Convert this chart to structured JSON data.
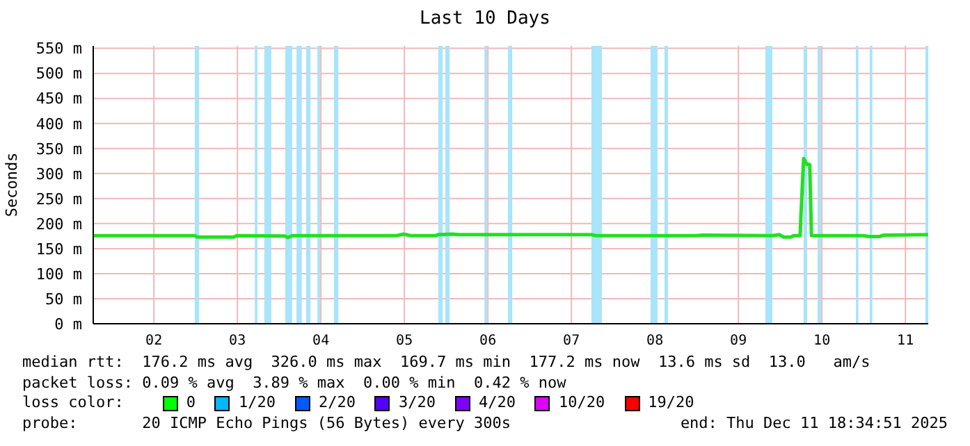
{
  "chart_data": {
    "type": "line",
    "title": "Last 10 Days",
    "ylabel": "Seconds",
    "x": [
      "2025-12-01T18:34",
      "2025-12-02T23:45",
      "2025-12-03T00:30",
      "2025-12-03T11:00",
      "2025-12-03T11:45",
      "2025-12-04T01:45",
      "2025-12-04T02:30",
      "2025-12-04T03:45",
      "2025-12-05T09:45",
      "2025-12-05T11:45",
      "2025-12-05T13:45",
      "2025-12-05T21:00",
      "2025-12-05T21:45",
      "2025-12-06T01:45",
      "2025-12-06T03:45",
      "2025-12-07T17:45",
      "2025-12-07T19:00",
      "2025-12-08T23:45",
      "2025-12-09T01:45",
      "2025-12-09T21:45",
      "2025-12-09T23:45",
      "2025-12-10T01:00",
      "2025-12-10T03:00",
      "2025-12-10T04:00",
      "2025-12-10T05:45",
      "2025-12-10T06:00",
      "2025-12-10T06:45",
      "2025-12-10T07:45",
      "2025-12-10T08:30",
      "2025-12-10T09:00",
      "2025-12-10T23:45",
      "2025-12-11T01:45",
      "2025-12-11T04:30",
      "2025-12-11T05:45",
      "2025-12-11T18:30"
    ],
    "series": [
      {
        "color": "#22e022",
        "values": [
          176,
          176,
          173,
          173,
          176,
          175,
          172,
          176,
          176,
          179,
          176,
          176,
          178,
          179,
          178,
          178,
          176,
          176,
          177,
          176,
          178,
          173,
          173,
          176,
          176,
          220,
          330,
          318,
          318,
          176,
          176,
          174,
          174,
          177,
          178
        ]
      }
    ],
    "xlim": [
      "2025-12-01T18:34",
      "2025-12-11T18:34"
    ],
    "xticks": [
      {
        "value": "2025-12-02T12:00",
        "label": "02"
      },
      {
        "value": "2025-12-03T12:00",
        "label": "03"
      },
      {
        "value": "2025-12-04T12:00",
        "label": "04"
      },
      {
        "value": "2025-12-05T12:00",
        "label": "05"
      },
      {
        "value": "2025-12-06T12:00",
        "label": "06"
      },
      {
        "value": "2025-12-07T12:00",
        "label": "07"
      },
      {
        "value": "2025-12-08T12:00",
        "label": "08"
      },
      {
        "value": "2025-12-09T12:00",
        "label": "09"
      },
      {
        "value": "2025-12-10T12:00",
        "label": "10"
      },
      {
        "value": "2025-12-11T12:00",
        "label": "11"
      }
    ],
    "ylim": [
      0,
      555
    ],
    "yticks": [
      {
        "value": 0,
        "label": "0 m"
      },
      {
        "value": 50,
        "label": "50 m"
      },
      {
        "value": 100,
        "label": "100 m"
      },
      {
        "value": 150,
        "label": "150 m"
      },
      {
        "value": 200,
        "label": "200 m"
      },
      {
        "value": 250,
        "label": "250 m"
      },
      {
        "value": 300,
        "label": "300 m"
      },
      {
        "value": 350,
        "label": "350 m"
      },
      {
        "value": 400,
        "label": "400 m"
      },
      {
        "value": 450,
        "label": "450 m"
      },
      {
        "value": 500,
        "label": "500 m"
      },
      {
        "value": 550,
        "label": "550 m"
      }
    ],
    "grid": true,
    "marker": "none",
    "line_style": "solid",
    "bands": [
      {
        "axis": "x",
        "from": "2025-12-02T23:45",
        "to": "2025-12-03T01:00",
        "color": "#a8e4fa"
      },
      {
        "axis": "x",
        "from": "2025-12-03T17:00",
        "to": "2025-12-03T17:45",
        "color": "#a8e4fa"
      },
      {
        "axis": "x",
        "from": "2025-12-03T19:45",
        "to": "2025-12-03T21:45",
        "color": "#a8e4fa"
      },
      {
        "axis": "x",
        "from": "2025-12-04T01:45",
        "to": "2025-12-04T03:45",
        "color": "#a8e4fa"
      },
      {
        "axis": "x",
        "from": "2025-12-04T05:00",
        "to": "2025-12-04T06:30",
        "color": "#a8e4fa"
      },
      {
        "axis": "x",
        "from": "2025-12-04T07:45",
        "to": "2025-12-04T09:00",
        "color": "#a8e4fa"
      },
      {
        "axis": "x",
        "from": "2025-12-04T11:00",
        "to": "2025-12-04T11:45",
        "color": "#a8e4fa"
      },
      {
        "axis": "x",
        "from": "2025-12-04T15:45",
        "to": "2025-12-04T17:00",
        "color": "#a8e4fa"
      },
      {
        "axis": "x",
        "from": "2025-12-05T21:45",
        "to": "2025-12-05T23:00",
        "color": "#a8e4fa"
      },
      {
        "axis": "x",
        "from": "2025-12-05T23:45",
        "to": "2025-12-06T01:00",
        "color": "#a8e4fa"
      },
      {
        "axis": "x",
        "from": "2025-12-06T11:00",
        "to": "2025-12-06T11:45",
        "color": "#a8e4fa"
      },
      {
        "axis": "x",
        "from": "2025-12-06T17:45",
        "to": "2025-12-06T19:00",
        "color": "#a8e4fa"
      },
      {
        "axis": "x",
        "from": "2025-12-07T17:45",
        "to": "2025-12-07T20:45",
        "color": "#a8e4fa"
      },
      {
        "axis": "x",
        "from": "2025-12-08T10:45",
        "to": "2025-12-08T12:45",
        "color": "#a8e4fa"
      },
      {
        "axis": "x",
        "from": "2025-12-08T14:45",
        "to": "2025-12-08T15:45",
        "color": "#a8e4fa"
      },
      {
        "axis": "x",
        "from": "2025-12-09T19:45",
        "to": "2025-12-09T21:45",
        "color": "#a8e4fa"
      },
      {
        "axis": "x",
        "from": "2025-12-10T06:45",
        "to": "2025-12-10T07:45",
        "color": "#a8e4fa"
      },
      {
        "axis": "x",
        "from": "2025-12-10T10:45",
        "to": "2025-12-10T11:45",
        "color": "#a8e4fa"
      },
      {
        "axis": "x",
        "from": "2025-12-10T21:45",
        "to": "2025-12-10T22:30",
        "color": "#a8e4fa"
      },
      {
        "axis": "x",
        "from": "2025-12-11T01:45",
        "to": "2025-12-11T02:30",
        "color": "#a8e4fa"
      },
      {
        "axis": "x",
        "from": "2025-12-11T17:45",
        "to": "2025-12-11T18:34",
        "color": "#a8e4fa"
      }
    ],
    "annotations": [
      "median rtt:  176.2 ms avg  326.0 ms max  169.7 ms min  177.2 ms now  13.6 ms sd  13.0   am/s",
      "packet loss: 0.09 % avg  3.89 % max  0.00 % min  0.42 % now",
      "loss color:",
      "0",
      "1/20",
      "2/20",
      "3/20",
      "4/20",
      "10/20",
      "19/20",
      "probe:       20 ICMP Echo Pings (56 Bytes) every 300s",
      "end: Thu Dec 11 18:34:51 2025"
    ]
  }
}
